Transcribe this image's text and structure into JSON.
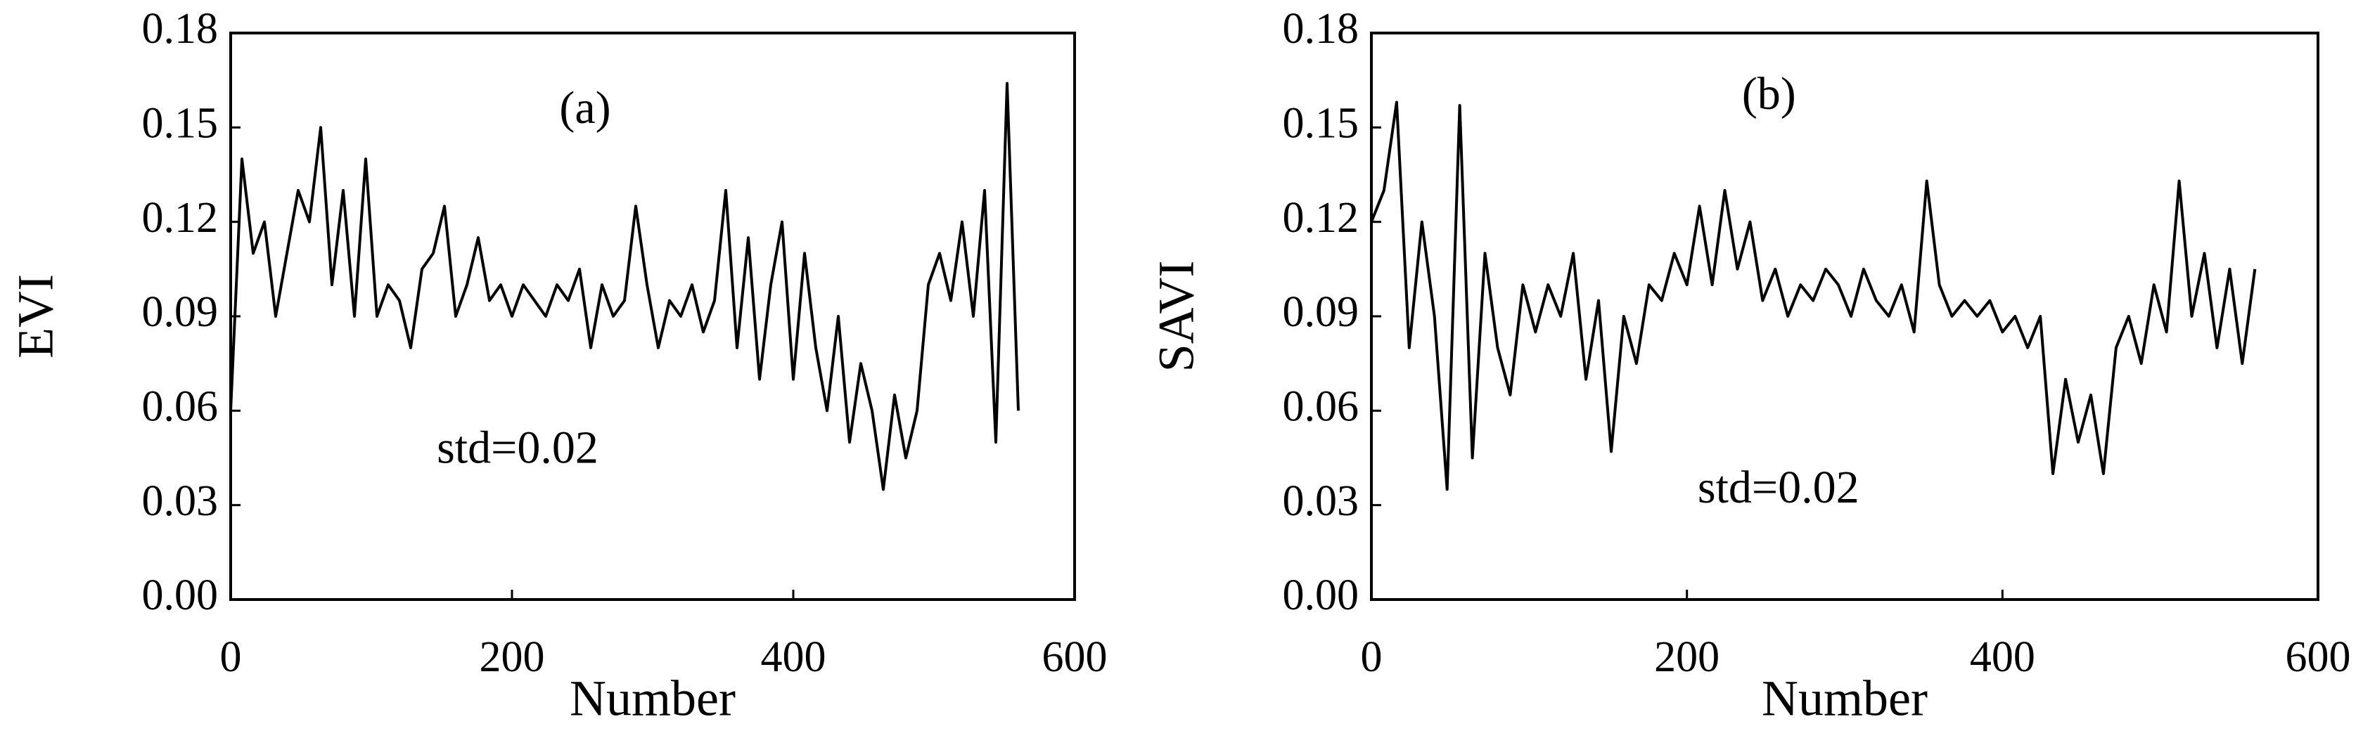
{
  "chart_data": [
    {
      "type": "line",
      "y_label": "EVI",
      "x_label": "Number",
      "annotations": [
        "(a)",
        "std=0.02"
      ],
      "color": "#000000",
      "x": [
        0,
        8,
        16,
        24,
        32,
        40,
        48,
        56,
        64,
        72,
        80,
        88,
        96,
        104,
        112,
        120,
        128,
        136,
        144,
        152,
        160,
        168,
        176,
        184,
        192,
        200,
        208,
        216,
        224,
        232,
        240,
        248,
        256,
        264,
        272,
        280,
        288,
        296,
        304,
        312,
        320,
        328,
        336,
        344,
        352,
        360,
        368,
        376,
        384,
        392,
        400,
        408,
        416,
        424,
        432,
        440,
        448,
        456,
        464,
        472,
        480,
        488,
        496,
        504,
        512,
        520,
        528,
        536,
        544,
        552,
        560
      ],
      "values": [
        0.06,
        0.14,
        0.11,
        0.12,
        0.09,
        0.11,
        0.13,
        0.12,
        0.15,
        0.1,
        0.13,
        0.09,
        0.14,
        0.09,
        0.1,
        0.095,
        0.08,
        0.105,
        0.11,
        0.125,
        0.09,
        0.1,
        0.115,
        0.095,
        0.1,
        0.09,
        0.1,
        0.095,
        0.09,
        0.1,
        0.095,
        0.105,
        0.08,
        0.1,
        0.09,
        0.095,
        0.125,
        0.1,
        0.08,
        0.095,
        0.09,
        0.1,
        0.085,
        0.095,
        0.13,
        0.08,
        0.115,
        0.07,
        0.1,
        0.12,
        0.07,
        0.11,
        0.08,
        0.06,
        0.09,
        0.05,
        0.075,
        0.06,
        0.035,
        0.065,
        0.045,
        0.06,
        0.1,
        0.11,
        0.095,
        0.12,
        0.09,
        0.13,
        0.05,
        0.164,
        0.06
      ],
      "xlim": [
        0,
        600
      ],
      "xticks": [
        0,
        200,
        400,
        600
      ],
      "ylim": [
        0,
        0.18
      ],
      "yticks": [
        {
          "value": 0,
          "label": "0.00"
        },
        0.03,
        0.06,
        0.09,
        0.12,
        0.15,
        0.18
      ]
    },
    {
      "type": "line",
      "y_label": "SAVI",
      "x_label": "Number",
      "annotations": [
        "(b)",
        "std=0.02"
      ],
      "color": "#000000",
      "x": [
        0,
        8,
        16,
        24,
        32,
        40,
        48,
        56,
        64,
        72,
        80,
        88,
        96,
        104,
        112,
        120,
        128,
        136,
        144,
        152,
        160,
        168,
        176,
        184,
        192,
        200,
        208,
        216,
        224,
        232,
        240,
        248,
        256,
        264,
        272,
        280,
        288,
        296,
        304,
        312,
        320,
        328,
        336,
        344,
        352,
        360,
        368,
        376,
        384,
        392,
        400,
        408,
        416,
        424,
        432,
        440,
        448,
        456,
        464,
        472,
        480,
        488,
        496,
        504,
        512,
        520,
        528,
        536,
        544,
        552,
        560
      ],
      "values": [
        0.12,
        0.13,
        0.158,
        0.08,
        0.12,
        0.09,
        0.035,
        0.157,
        0.045,
        0.11,
        0.08,
        0.065,
        0.1,
        0.085,
        0.1,
        0.09,
        0.11,
        0.07,
        0.095,
        0.047,
        0.09,
        0.075,
        0.1,
        0.095,
        0.11,
        0.1,
        0.125,
        0.1,
        0.13,
        0.105,
        0.12,
        0.095,
        0.105,
        0.09,
        0.1,
        0.095,
        0.105,
        0.1,
        0.09,
        0.105,
        0.095,
        0.09,
        0.1,
        0.085,
        0.133,
        0.1,
        0.09,
        0.095,
        0.09,
        0.095,
        0.085,
        0.09,
        0.08,
        0.09,
        0.04,
        0.07,
        0.05,
        0.065,
        0.04,
        0.08,
        0.09,
        0.075,
        0.1,
        0.085,
        0.133,
        0.09,
        0.11,
        0.08,
        0.105,
        0.075,
        0.105
      ],
      "xlim": [
        0,
        600
      ],
      "xticks": [
        0,
        200,
        400,
        600
      ],
      "ylim": [
        0,
        0.18
      ],
      "yticks": [
        {
          "value": 0,
          "label": "0.00"
        },
        0.03,
        0.06,
        0.09,
        0.12,
        0.15,
        0.18
      ]
    }
  ]
}
